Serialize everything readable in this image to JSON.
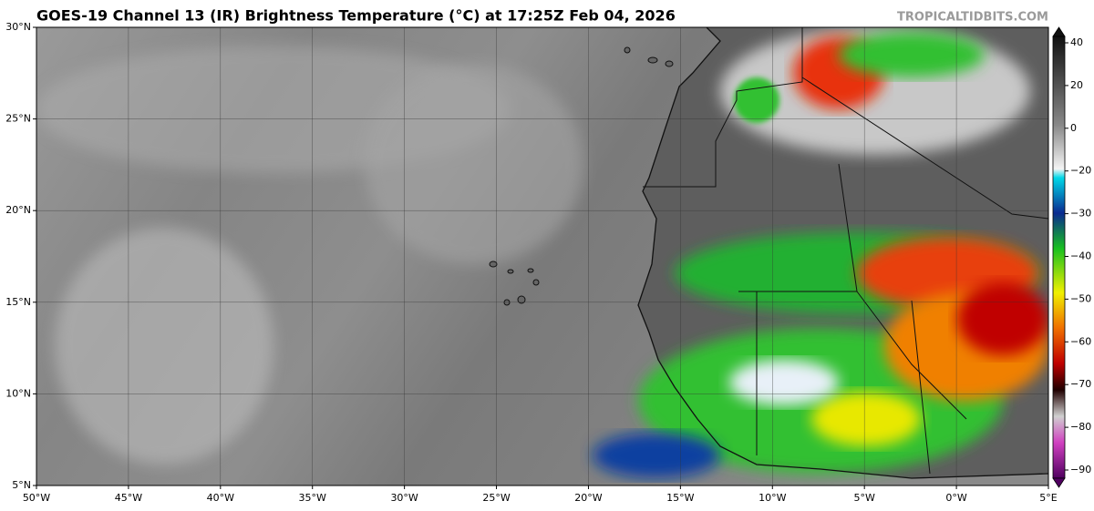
{
  "header": {
    "title": "GOES-19 Channel 13 (IR) Brightness Temperature (°C) at 17:25Z Feb 04, 2026",
    "site": "TROPICALTIDBITS.COM"
  },
  "map": {
    "latitude_labels": [
      "30°N",
      "25°N",
      "20°N",
      "15°N",
      "10°N",
      "5°N"
    ],
    "longitude_labels": [
      "50°W",
      "45°W",
      "40°W",
      "35°W",
      "30°W",
      "25°W",
      "20°W",
      "15°W",
      "10°W",
      "5°W",
      "0°W",
      "5°E"
    ]
  },
  "colorbar": {
    "ticks": [
      "40",
      "20",
      "0",
      "−20",
      "−30",
      "−40",
      "−50",
      "−60",
      "−70",
      "−80",
      "−90"
    ]
  }
}
